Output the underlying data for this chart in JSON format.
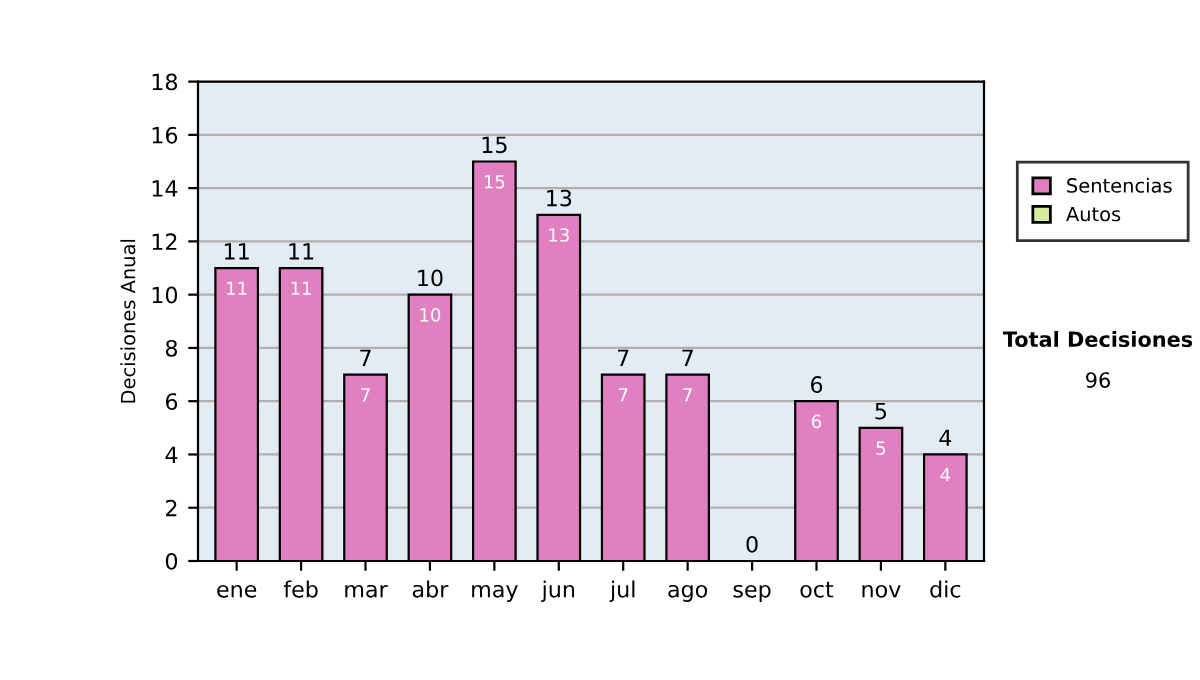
{
  "chart_data": {
    "type": "bar",
    "stacked": true,
    "ylabel": "Decisiones Anual",
    "categories": [
      "ene",
      "feb",
      "mar",
      "abr",
      "may",
      "jun",
      "jul",
      "ago",
      "sep",
      "oct",
      "nov",
      "dic"
    ],
    "series": [
      {
        "name": "Sentencias",
        "color": "#e080c0",
        "values": [
          11,
          11,
          7,
          10,
          15,
          13,
          7,
          7,
          0,
          6,
          5,
          4
        ],
        "value_labels": [
          "11",
          "11",
          "7",
          "10",
          "15",
          "13",
          "7",
          "7",
          null,
          "6",
          "5",
          "4"
        ]
      },
      {
        "name": "Autos",
        "color": "#d8eca0",
        "values": [
          0,
          0,
          0,
          0,
          0,
          0,
          0,
          0,
          0,
          0,
          0,
          0
        ]
      }
    ],
    "totals": [
      "11",
      "11",
      "7",
      "10",
      "15",
      "13",
      "7",
      "7",
      "0",
      "6",
      "5",
      "4"
    ],
    "ylim": [
      0,
      18
    ],
    "yticks": [
      0,
      2,
      4,
      6,
      8,
      10,
      12,
      14,
      16,
      18
    ],
    "grid": "y",
    "legend": "right",
    "annotations": [
      "Total Decisiones",
      "96"
    ]
  }
}
